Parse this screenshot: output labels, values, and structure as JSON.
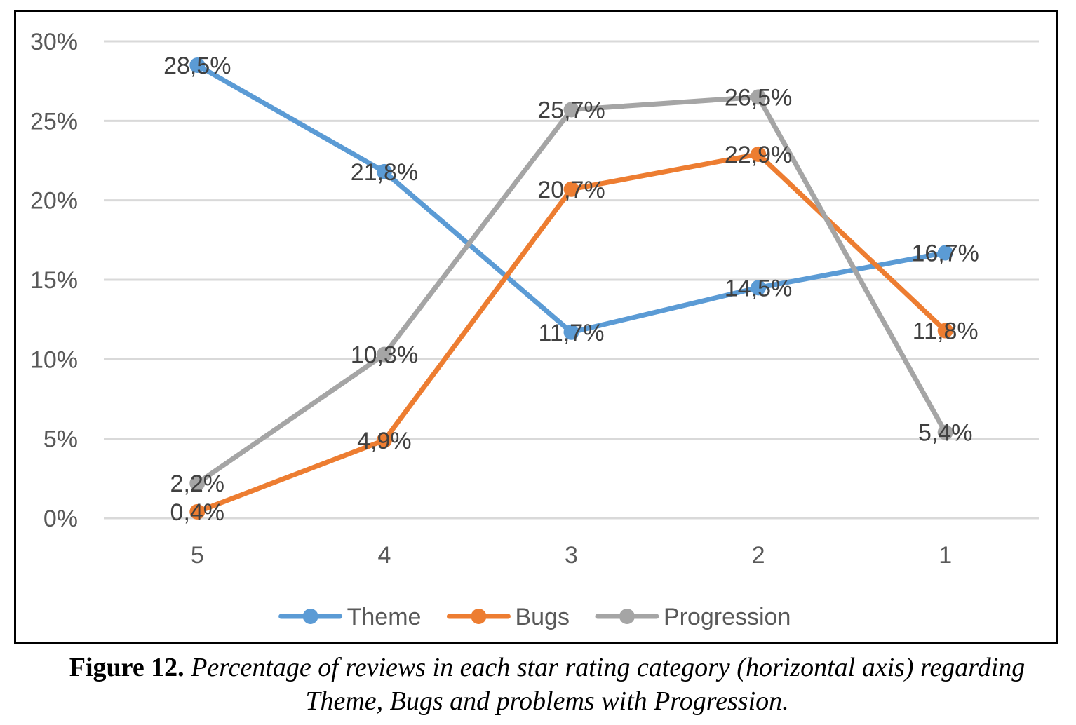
{
  "chart_data": {
    "type": "line",
    "title": "",
    "xlabel": "",
    "ylabel": "",
    "categories": [
      "5",
      "4",
      "3",
      "2",
      "1"
    ],
    "ylim": [
      0,
      30
    ],
    "yticks": [
      0,
      5,
      10,
      15,
      20,
      25,
      30
    ],
    "ytick_labels": [
      "0%",
      "5%",
      "10%",
      "15%",
      "20%",
      "25%",
      "30%"
    ],
    "grid": true,
    "legend_position": "bottom",
    "series": [
      {
        "name": "Theme",
        "color": "#5B9BD5",
        "values": [
          28.5,
          21.8,
          11.7,
          14.5,
          16.7
        ],
        "labels": [
          "28,5%",
          "21,8%",
          "11,7%",
          "14,5%",
          "16,7%"
        ]
      },
      {
        "name": "Bugs",
        "color": "#ED7D31",
        "values": [
          0.4,
          4.9,
          20.7,
          22.9,
          11.8
        ],
        "labels": [
          "0,4%",
          "4,9%",
          "20,7%",
          "22,9%",
          "11,8%"
        ]
      },
      {
        "name": "Progression",
        "color": "#A5A5A5",
        "values": [
          2.2,
          10.3,
          25.7,
          26.5,
          5.4
        ],
        "labels": [
          "2,2%",
          "10,3%",
          "25,7%",
          "26,5%",
          "5,4%"
        ]
      }
    ]
  },
  "caption": {
    "label": "Figure 12.",
    "text": " Percentage of reviews in each star rating category (horizontal axis) regarding Theme, Bugs and problems with Progression."
  }
}
